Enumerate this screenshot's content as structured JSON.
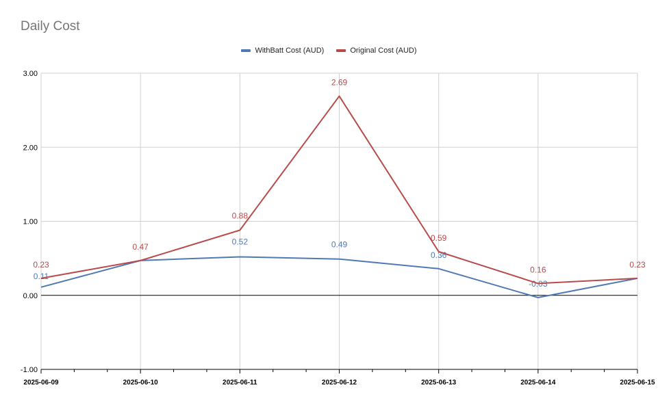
{
  "chart_data": {
    "type": "line",
    "title": "Daily Cost",
    "xlabel": "",
    "ylabel": "",
    "categories": [
      "2025-06-09",
      "2025-06-10",
      "2025-06-11",
      "2025-06-12",
      "2025-06-13",
      "2025-06-14",
      "2025-06-15"
    ],
    "y_ticks": [
      "3.00",
      "2.00",
      "1.00",
      "0.00",
      "-1.00"
    ],
    "ylim": [
      -1,
      3
    ],
    "grid": true,
    "legend_position": "top-center",
    "series": [
      {
        "name": "WithBatt Cost (AUD)",
        "color": "#4e79b5",
        "values": [
          0.11,
          0.47,
          0.52,
          0.49,
          0.36,
          -0.03,
          0.23
        ],
        "labels": [
          "0.11",
          "",
          "0.52",
          "0.49",
          "0.36",
          "-0.03",
          ""
        ]
      },
      {
        "name": "Original Cost (AUD)",
        "color": "#b84a4a",
        "values": [
          0.23,
          0.47,
          0.88,
          2.69,
          0.59,
          0.16,
          0.23
        ],
        "labels": [
          "0.23",
          "0.47",
          "0.88",
          "2.69",
          "0.59",
          "0.16",
          "0.23"
        ]
      }
    ]
  }
}
